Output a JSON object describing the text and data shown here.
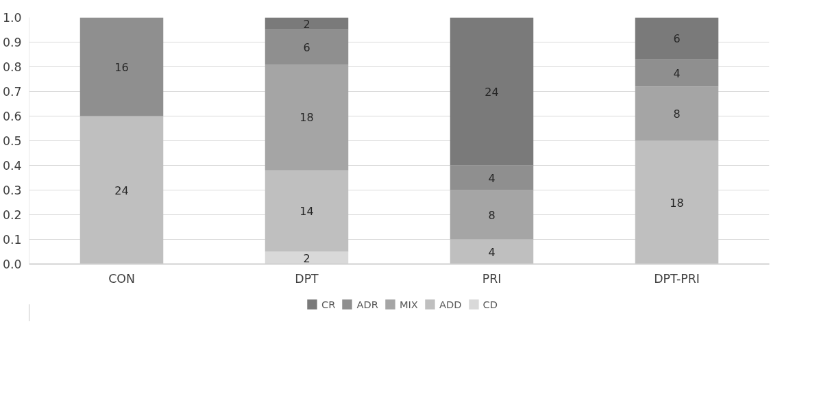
{
  "chart_data": {
    "type": "bar",
    "stacked": true,
    "categories": [
      "CON",
      "DPT",
      "PRI",
      "DPT-PRI"
    ],
    "ylim": [
      0,
      1.0
    ],
    "yticks": [
      {
        "value": 0,
        "label": "0.0"
      },
      0.1,
      0.2,
      0.3,
      0.4,
      0.5,
      0.6,
      0.7,
      0.8,
      0.9,
      {
        "value": 1,
        "label": "1.0"
      }
    ],
    "grid": "y",
    "legend": "bottom",
    "series": [
      {
        "name": "CD",
        "color": "#d9d9d9",
        "values": [
          null,
          0.05,
          null,
          null
        ]
      },
      {
        "name": "ADD",
        "color": "#bfbfbf",
        "values": [
          0.6,
          0.33,
          0.1,
          0.5
        ]
      },
      {
        "name": "MIX",
        "color": "#a5a5a5",
        "values": [
          null,
          0.43,
          0.2,
          0.22
        ]
      },
      {
        "name": "ADR",
        "color": "#8f8f8f",
        "values": [
          0.4,
          0.14,
          0.1,
          0.11
        ]
      },
      {
        "name": "CR",
        "color": "#7a7a7a",
        "values": [
          null,
          0.05,
          0.6,
          0.17
        ]
      }
    ],
    "annotations": [
      "2",
      "24",
      "14",
      "4",
      "18",
      "18",
      "8",
      "8",
      "16",
      "6",
      "4",
      "4",
      "2",
      "24",
      "6"
    ]
  }
}
